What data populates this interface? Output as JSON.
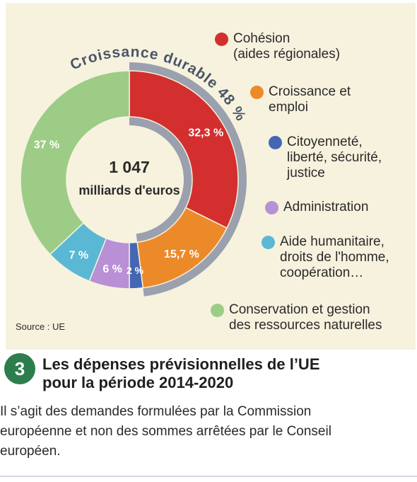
{
  "chart_data": {
    "type": "pie",
    "style": "donut",
    "total_line1": "1 047",
    "total_line2": "milliards d'euros",
    "arc_label": "Croissance durable 48 %",
    "slices": [
      {
        "name": "Cohésion (aides régionales)",
        "value": 32.3,
        "label": "32,3 %",
        "color": "#d32f2f"
      },
      {
        "name": "Croissance et emploi",
        "value": 15.7,
        "label": "15,7 %",
        "color": "#ec8a2a"
      },
      {
        "name": "Citoyenneté, liberté, sécurité, justice",
        "value": 2,
        "label": "2 %",
        "color": "#4466b3"
      },
      {
        "name": "Administration",
        "value": 6,
        "label": "6 %",
        "color": "#b98fd6"
      },
      {
        "name": "Aide humanitaire, droits de l'homme, coopération…",
        "value": 7,
        "label": "7 %",
        "color": "#5ab8d4"
      },
      {
        "name": "Conservation et gestion des ressources naturelles",
        "value": 37,
        "label": "37 %",
        "color": "#9ccc86"
      }
    ],
    "legend": [
      {
        "lines": [
          "Cohésion",
          "(aides régionales)"
        ],
        "color": "#d32f2f"
      },
      {
        "lines": [
          "Croissance et",
          "emploi"
        ],
        "color": "#ec8a2a"
      },
      {
        "lines": [
          "Citoyenneté,",
          "liberté, sécurité,",
          "justice"
        ],
        "color": "#4466b3"
      },
      {
        "lines": [
          "Administration"
        ],
        "color": "#b98fd6"
      },
      {
        "lines": [
          "Aide humanitaire,",
          "droits de l'homme,",
          "coopération…"
        ],
        "color": "#5ab8d4"
      },
      {
        "lines": [
          "Conservation et gestion",
          "des ressources naturelles"
        ],
        "color": "#9ccc86"
      }
    ],
    "legend_position": "right",
    "group_arc_color": "#9aa0ad"
  },
  "source": "Source : UE",
  "caption": {
    "number": "3",
    "title_line1": "Les dépenses prévisionnelles de l’UE",
    "title_line2": "pour la période 2014-2020",
    "body_lines": [
      "Il s’agit des demandes formulées par la Commission",
      "européenne et non des sommes arrêtées par le Conseil",
      "européen."
    ]
  }
}
